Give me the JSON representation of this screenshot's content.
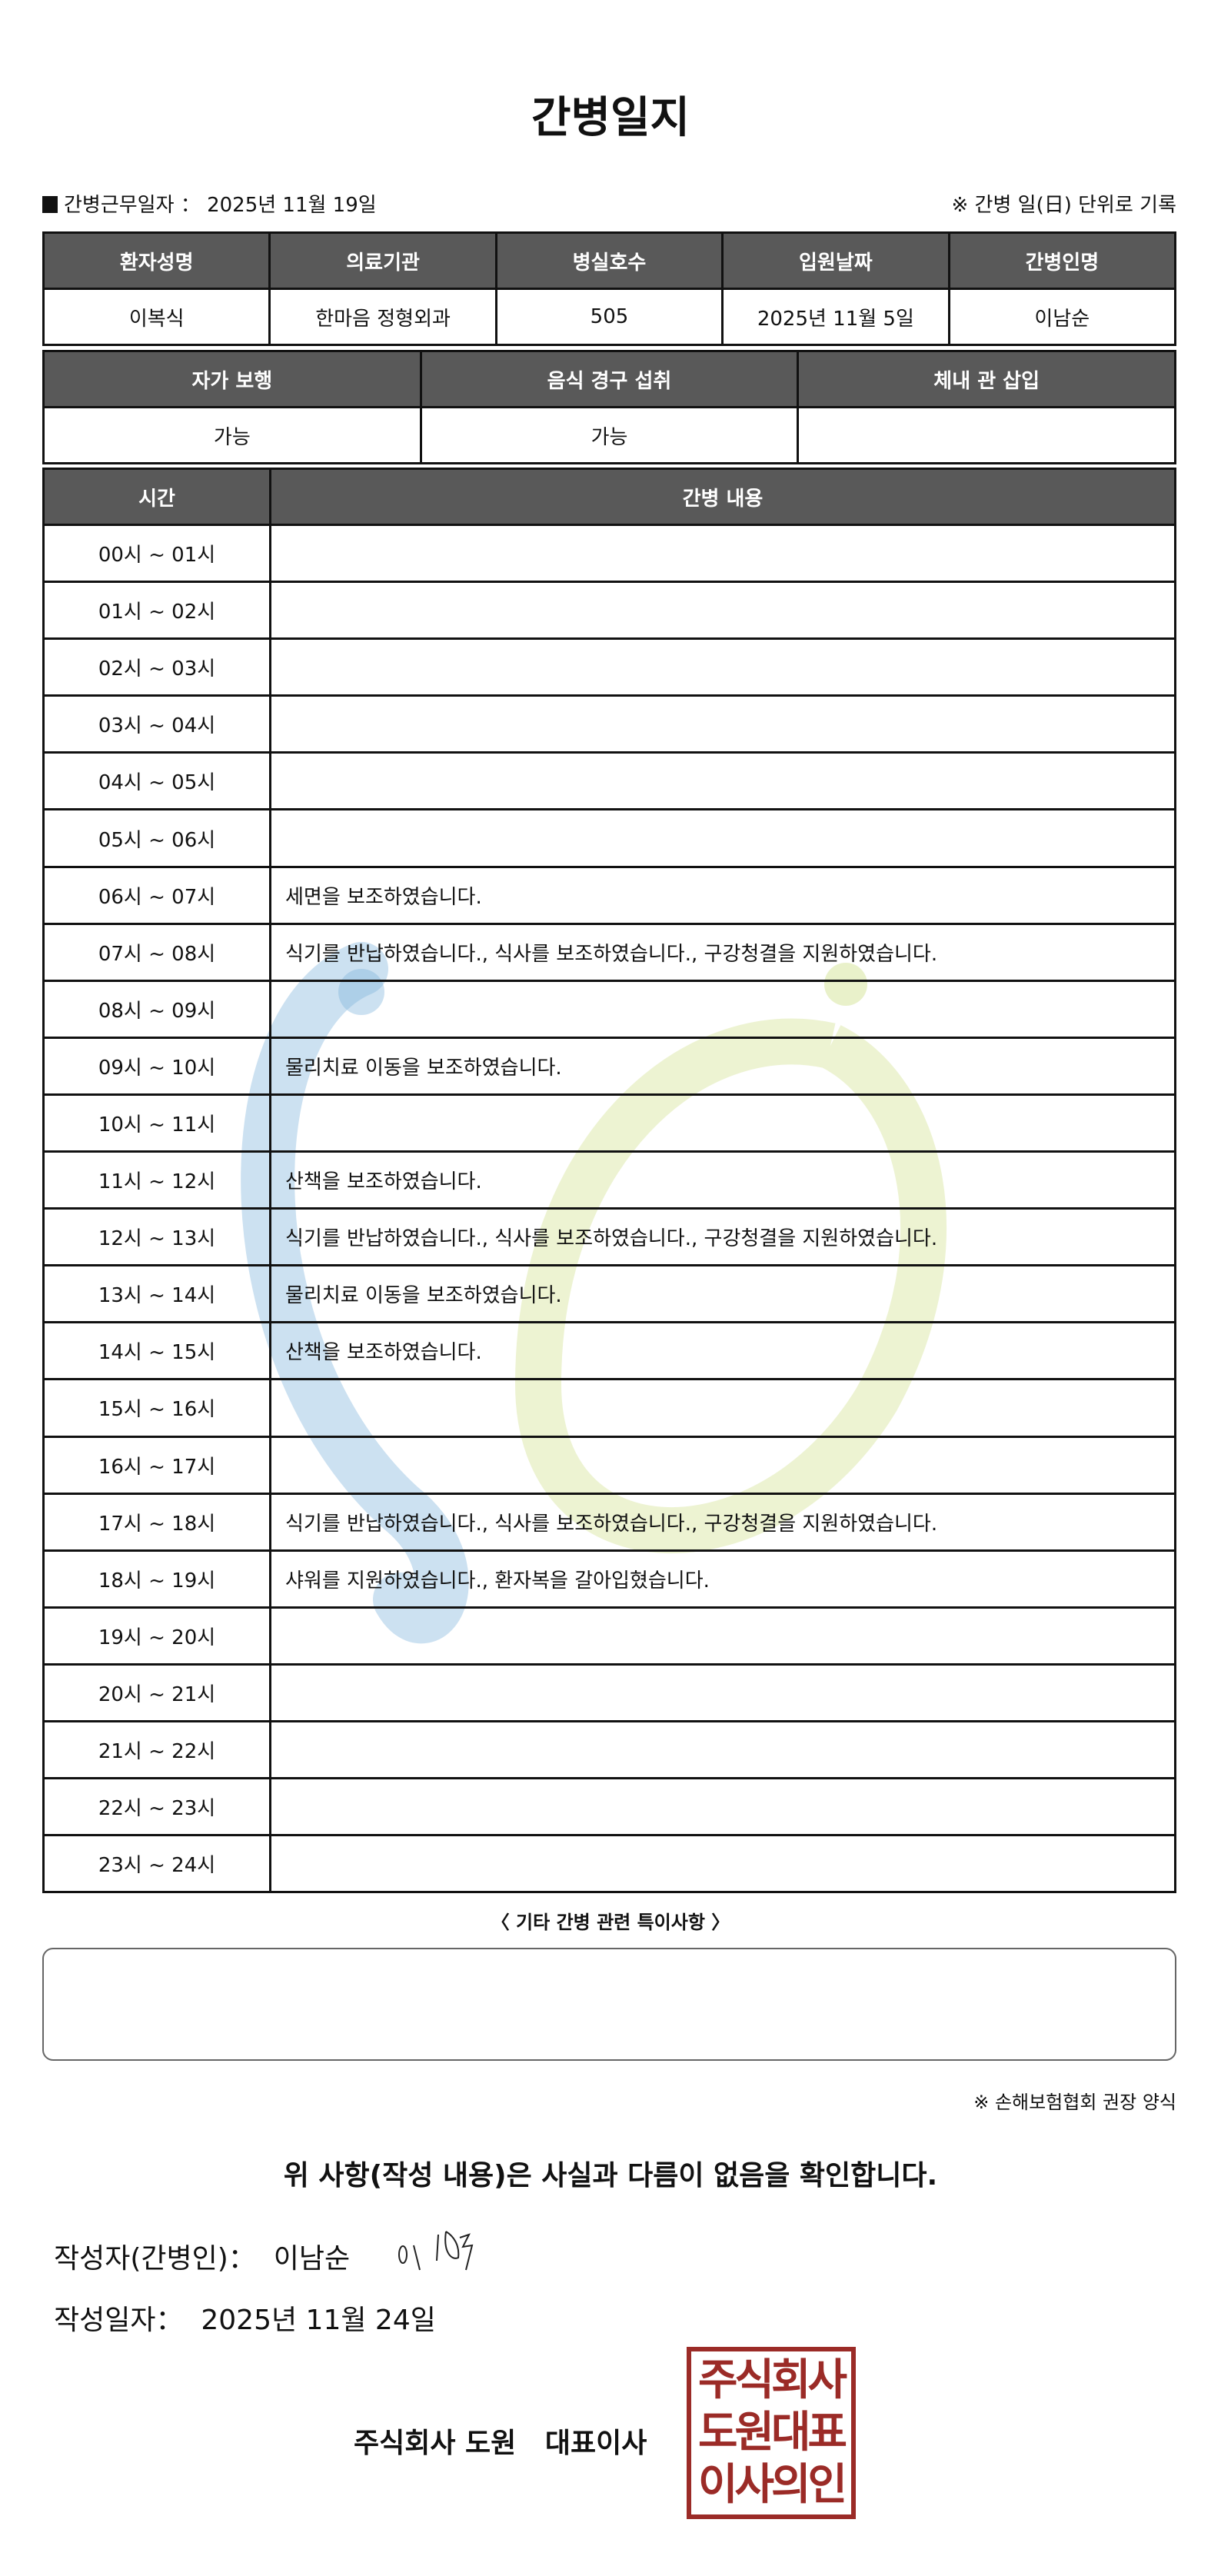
{
  "title": "간병일지",
  "duty": {
    "label": "간병근무일자 ：",
    "value": "2025년 11월 19일"
  },
  "unit_note": "※ 간병 일(日) 단위로 기록",
  "info": {
    "headers": [
      "환자성명",
      "의료기관",
      "병실호수",
      "입원날짜",
      "간병인명"
    ],
    "values": [
      "이복식",
      "한마음 정형외과",
      "505",
      "2025년 11월 5일",
      "이남순"
    ]
  },
  "status": {
    "headers": [
      "자가 보행",
      "음식 경구 섭취",
      "체내 관 삽입"
    ],
    "values": [
      "가능",
      "가능",
      ""
    ]
  },
  "log": {
    "headers": [
      "시간",
      "간병 내용"
    ],
    "rows": [
      {
        "time": "00시 ~ 01시",
        "content": ""
      },
      {
        "time": "01시 ~ 02시",
        "content": ""
      },
      {
        "time": "02시 ~ 03시",
        "content": ""
      },
      {
        "time": "03시 ~ 04시",
        "content": ""
      },
      {
        "time": "04시 ~ 05시",
        "content": ""
      },
      {
        "time": "05시 ~ 06시",
        "content": ""
      },
      {
        "time": "06시 ~ 07시",
        "content": "세면을 보조하였습니다."
      },
      {
        "time": "07시 ~ 08시",
        "content": "식기를 반납하였습니다., 식사를 보조하였습니다., 구강청결을 지원하였습니다."
      },
      {
        "time": "08시 ~ 09시",
        "content": ""
      },
      {
        "time": "09시 ~ 10시",
        "content": "물리치료 이동을 보조하였습니다."
      },
      {
        "time": "10시 ~ 11시",
        "content": ""
      },
      {
        "time": "11시 ~ 12시",
        "content": "산책을 보조하였습니다."
      },
      {
        "time": "12시 ~ 13시",
        "content": "식기를 반납하였습니다., 식사를 보조하였습니다., 구강청결을 지원하였습니다."
      },
      {
        "time": "13시 ~ 14시",
        "content": "물리치료 이동을 보조하였습니다."
      },
      {
        "time": "14시 ~ 15시",
        "content": "산책을 보조하였습니다."
      },
      {
        "time": "15시 ~ 16시",
        "content": ""
      },
      {
        "time": "16시 ~ 17시",
        "content": ""
      },
      {
        "time": "17시 ~ 18시",
        "content": "식기를 반납하였습니다., 식사를 보조하였습니다., 구강청결을 지원하였습니다."
      },
      {
        "time": "18시 ~ 19시",
        "content": "샤워를 지원하였습니다., 환자복을 갈아입혔습니다."
      },
      {
        "time": "19시 ~ 20시",
        "content": ""
      },
      {
        "time": "20시 ~ 21시",
        "content": ""
      },
      {
        "time": "21시 ~ 22시",
        "content": ""
      },
      {
        "time": "22시 ~ 23시",
        "content": ""
      },
      {
        "time": "23시 ~ 24시",
        "content": ""
      }
    ]
  },
  "notes": {
    "label": "〈 기타 간병 관련 특이사항 〉",
    "value": ""
  },
  "assoc_note": "※ 손해보험협회 권장 양식",
  "confirm": "위 사항(작성 내용)은 사실과 다름이 없음을 확인합니다.",
  "writer": {
    "label": "작성자(간병인)：",
    "name": "이남순"
  },
  "written_date": {
    "label": "작성일자：",
    "value": "2025년 11월 24일"
  },
  "company": "주식회사 도원   대표이사",
  "seal_text": "주식회사도원대표이사의인",
  "colors": {
    "header_bg": "#595959",
    "seal": "#9b2b27",
    "watermark_blue": "#7fb3dc",
    "watermark_green": "#dbe7a6"
  }
}
